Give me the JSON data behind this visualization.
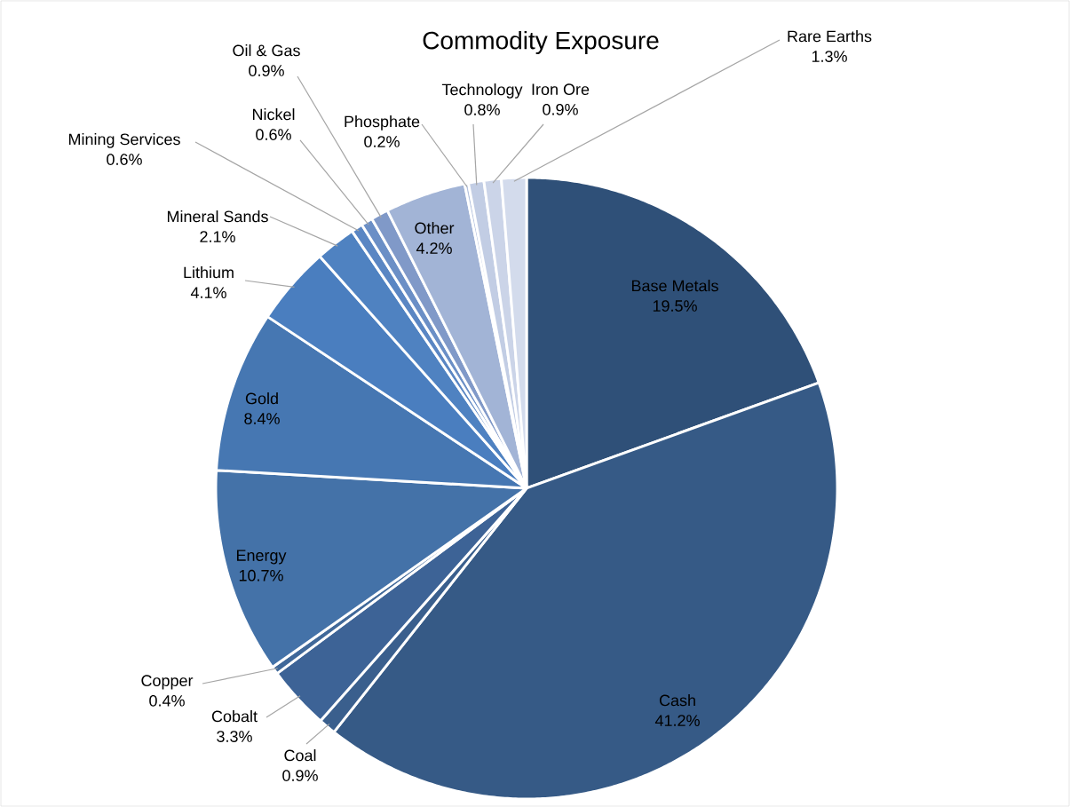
{
  "chart_data": {
    "type": "pie",
    "title": "Commodity Exposure",
    "categories": [
      "Base Metals",
      "Cash",
      "Coal",
      "Cobalt",
      "Copper",
      "Energy",
      "Gold",
      "Lithium",
      "Mineral Sands",
      "Mining Services",
      "Nickel",
      "Oil & Gas",
      "Other",
      "Phosphate",
      "Technology",
      "Iron Ore",
      "Rare Earths"
    ],
    "values": [
      19.5,
      41.2,
      0.9,
      3.3,
      0.4,
      10.7,
      8.4,
      4.1,
      2.1,
      0.6,
      0.6,
      0.9,
      4.2,
      0.2,
      0.8,
      0.9,
      1.3
    ],
    "value_labels": [
      "19.5%",
      "41.2%",
      "0.9%",
      "3.3%",
      "0.4%",
      "10.7%",
      "8.4%",
      "4.1%",
      "2.1%",
      "0.6%",
      "0.6%",
      "0.9%",
      "4.2%",
      "0.2%",
      "0.8%",
      "0.9%",
      "1.3%"
    ],
    "colors": [
      "#2f5078",
      "#365a86",
      "#3a5f8d",
      "#3d6396",
      "#406899",
      "#4472a8",
      "#4677b2",
      "#4a7ebf",
      "#4f82c1",
      "#5a86c3",
      "#6b8fc6",
      "#8099c8",
      "#a2b4d6",
      "#b4c2de",
      "#c2cde4",
      "#cbd4e8",
      "#d3dbec"
    ]
  }
}
